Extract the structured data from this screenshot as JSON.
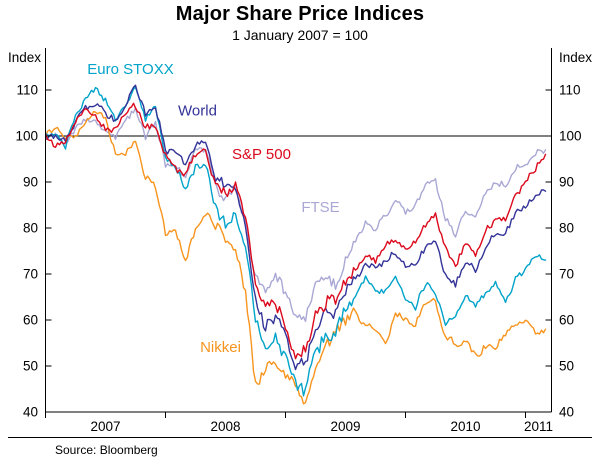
{
  "footer": {
    "source": "Source: Bloomberg"
  },
  "chart_data": {
    "type": "line",
    "title": "Major Share Price Indices",
    "subtitle": "1 January 2007 = 100",
    "axis_unit_left": "Index",
    "axis_unit_right": "Index",
    "ylim": [
      40,
      119
    ],
    "yticks": [
      40,
      50,
      60,
      70,
      80,
      90,
      100,
      110
    ],
    "reference_line": 100,
    "grid": false,
    "legend_position": "inline-labels",
    "x_unit": "months_since_2007_01",
    "x_year_tick_months": [
      0,
      12,
      24,
      36,
      48
    ],
    "x_labels": [
      {
        "text": "2007",
        "m": 6
      },
      {
        "text": "2008",
        "m": 18
      },
      {
        "text": "2009",
        "m": 30
      },
      {
        "text": "2010",
        "m": 42
      },
      {
        "text": "2011",
        "m": 49.3
      }
    ],
    "draw_order": [
      "FTSE",
      "Nikkei",
      "Euro STOXX",
      "World",
      "S&P 500"
    ],
    "series": [
      {
        "name": "Euro STOXX",
        "color": "#00A3C9",
        "label": {
          "text": "Euro STOXX",
          "m": 8.5,
          "v": 113.5
        },
        "monthly_values": [
          100,
          101,
          98,
          104,
          108,
          110,
          108,
          103,
          107,
          111,
          104,
          106,
          95,
          93,
          89,
          93,
          94,
          84,
          81,
          83,
          76,
          60,
          54,
          56,
          52,
          46,
          45,
          53,
          57,
          57,
          62,
          66,
          69,
          66,
          66,
          69,
          65,
          63,
          68,
          66,
          59,
          61,
          65,
          63,
          66,
          68,
          64,
          69,
          71,
          74,
          73
        ]
      },
      {
        "name": "World",
        "color": "#333399",
        "label": {
          "text": "World",
          "m": 15.2,
          "v": 104.5
        },
        "monthly_values": [
          100,
          100,
          99,
          103,
          106,
          107,
          105,
          103,
          107,
          111,
          105,
          106,
          97,
          96,
          94,
          98,
          99,
          91,
          89,
          89,
          80,
          64,
          58,
          61,
          56,
          50,
          51,
          57,
          62,
          62,
          66,
          69,
          72,
          71,
          73,
          75,
          72,
          72,
          76,
          77,
          70,
          68,
          73,
          71,
          76,
          79,
          79,
          83,
          85,
          87,
          88
        ]
      },
      {
        "name": "S&P 500",
        "color": "#DC091C",
        "label": {
          "text": "S&P 500",
          "m": 21.6,
          "v": 95
        },
        "monthly_values": [
          100,
          98,
          99,
          103,
          106,
          104,
          101,
          102,
          105,
          107,
          102,
          102,
          96,
          93,
          92,
          96,
          97,
          89,
          88,
          90,
          82,
          68,
          63,
          64,
          58,
          52,
          53,
          61,
          64,
          64,
          69,
          71,
          74,
          73,
          76,
          78,
          75,
          77,
          81,
          83,
          76,
          72,
          77,
          74,
          79,
          82,
          82,
          87,
          90,
          93,
          96
        ]
      },
      {
        "name": "FTSE",
        "color": "#A9A8D5",
        "label": {
          "text": "FTSE",
          "m": 27.5,
          "v": 83.5
        },
        "monthly_values": [
          100,
          100,
          98,
          102,
          104,
          103,
          101,
          100,
          103,
          106,
          100,
          103,
          94,
          94,
          91,
          97,
          97,
          90,
          86,
          89,
          81,
          70,
          66,
          70,
          66,
          61,
          60,
          67,
          70,
          67,
          73,
          77,
          81,
          80,
          83,
          86,
          83,
          85,
          90,
          90,
          82,
          78,
          84,
          82,
          88,
          90,
          89,
          93,
          94,
          96,
          97
        ]
      },
      {
        "name": "Nikkei",
        "color": "#F7941D",
        "label": {
          "text": "Nikkei",
          "m": 17.5,
          "v": 53
        },
        "monthly_values": [
          100,
          102,
          100,
          100,
          103,
          105,
          104,
          96,
          96,
          99,
          91,
          89,
          79,
          79,
          73,
          80,
          83,
          81,
          77,
          75,
          67,
          46,
          49,
          51,
          48,
          45,
          42,
          51,
          54,
          57,
          60,
          61,
          59,
          58,
          55,
          61,
          60,
          59,
          64,
          64,
          56,
          55,
          55,
          52,
          54,
          54,
          57,
          59,
          60,
          57,
          58
        ]
      }
    ],
    "source": "Source: Bloomberg"
  }
}
